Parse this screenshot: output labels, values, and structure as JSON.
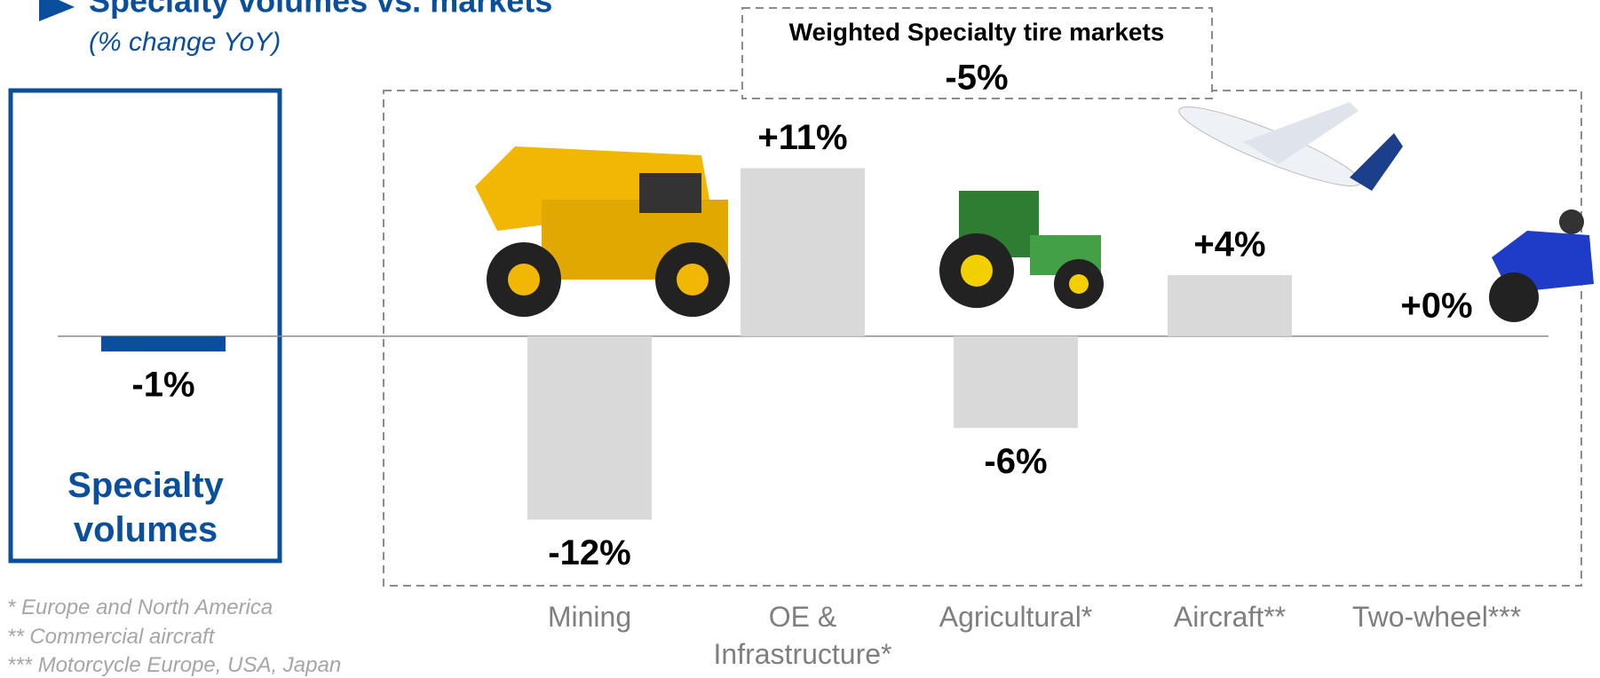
{
  "chart_data": {
    "type": "bar",
    "title": "Specialty volumes vs. markets",
    "subtitle": "(% change YoY)",
    "market_title": "Weighted Specialty tire markets",
    "market_value": -5,
    "market_value_label": "-5%",
    "categories": [
      "Specialty volumes",
      "Mining",
      "OE & Infrastructure*",
      "Agricultural*",
      "Aircraft**",
      "Two-wheel***"
    ],
    "values": [
      -1,
      -12,
      11,
      -6,
      4,
      0
    ],
    "value_labels": [
      "-1%",
      "-12%",
      "+11%",
      "-6%",
      "+4%",
      "+0%"
    ],
    "colors": [
      "#0a4f9e",
      "#d9d9d9",
      "#d9d9d9",
      "#d9d9d9",
      "#d9d9d9",
      "#d9d9d9"
    ],
    "ylim": [
      -14,
      13
    ],
    "footnotes": [
      "* Europe and North America",
      "** Commercial aircraft",
      "*** Motorcycle Europe, USA, Japan"
    ]
  }
}
